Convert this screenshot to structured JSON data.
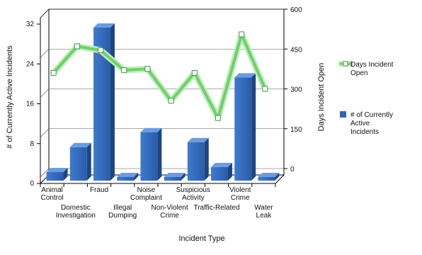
{
  "chart_data": {
    "type": "bar",
    "categories": [
      [
        "Animal",
        "Control"
      ],
      [
        "Domestic",
        "Investigation"
      ],
      [
        "Fraud"
      ],
      [
        "Illegal",
        "Dumping"
      ],
      [
        "Noise",
        "Complaint"
      ],
      [
        "Non-Violent",
        "Crime"
      ],
      [
        "Suspicious",
        "Activity"
      ],
      [
        "Traffic-Related"
      ],
      [
        "Violent",
        "Crime"
      ],
      [
        "Water",
        "Leak"
      ]
    ],
    "series": [
      {
        "name": "# of Currently Active Incidents",
        "kind": "bar",
        "axis": "left",
        "color": "#2e66b5",
        "values": [
          2,
          7,
          31,
          1,
          10,
          1,
          8,
          3,
          21,
          1
        ]
      },
      {
        "name": "Days Incident Open",
        "kind": "line",
        "axis": "right",
        "color": "#7cd67a",
        "values": [
          395,
          495,
          480,
          405,
          410,
          290,
          395,
          225,
          540,
          335
        ]
      }
    ],
    "xlabel": "Incident Type",
    "ylabel": "# of Currently Active Incidents",
    "y2label": "Days Incident Open",
    "ylim": [
      0,
      32
    ],
    "yticks": [
      "0",
      "8",
      "16",
      "24",
      "32"
    ],
    "y2lim": [
      0,
      600
    ],
    "y2ticks": [
      "0",
      "150",
      "300",
      "450",
      "600"
    ],
    "grid": true,
    "legend": "right"
  }
}
